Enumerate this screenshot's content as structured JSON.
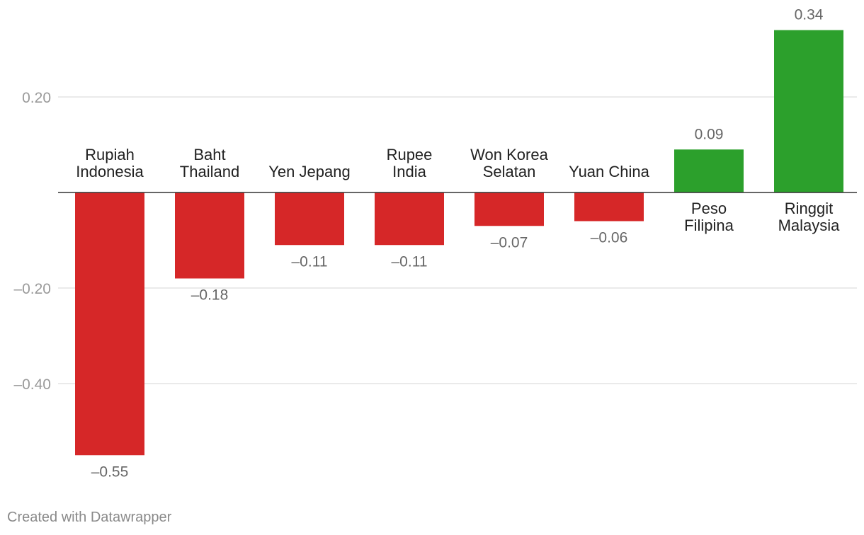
{
  "chart_data": {
    "type": "bar",
    "title": "",
    "xlabel": "",
    "ylabel": "",
    "ylim": [
      -0.55,
      0.34
    ],
    "yticks": [
      {
        "value": 0.2,
        "label": "0.20"
      },
      {
        "value": -0.2,
        "label": "–0.20"
      },
      {
        "value": -0.4,
        "label": "–0.40"
      }
    ],
    "categories": [
      [
        "Rupiah",
        "Indonesia"
      ],
      [
        "Baht",
        "Thailand"
      ],
      [
        "Yen Jepang"
      ],
      [
        "Rupee",
        "India"
      ],
      [
        "Won Korea",
        "Selatan"
      ],
      [
        "Yuan China"
      ],
      [
        "Peso",
        "Filipina"
      ],
      [
        "Ringgit",
        "Malaysia"
      ]
    ],
    "values": [
      -0.55,
      -0.18,
      -0.11,
      -0.11,
      -0.07,
      -0.06,
      0.09,
      0.34
    ],
    "value_labels": [
      "–0.55",
      "–0.18",
      "–0.11",
      "–0.11",
      "–0.07",
      "–0.06",
      "0.09",
      "0.34"
    ],
    "colors": {
      "negative": "#d62728",
      "positive": "#2ca02c",
      "grid": "#e3e3e3",
      "zero_line": "#333333",
      "tick_text": "#9a9a9a",
      "value_text": "#666666",
      "category_text": "#222222"
    }
  },
  "footer": {
    "credit": "Created with Datawrapper"
  }
}
